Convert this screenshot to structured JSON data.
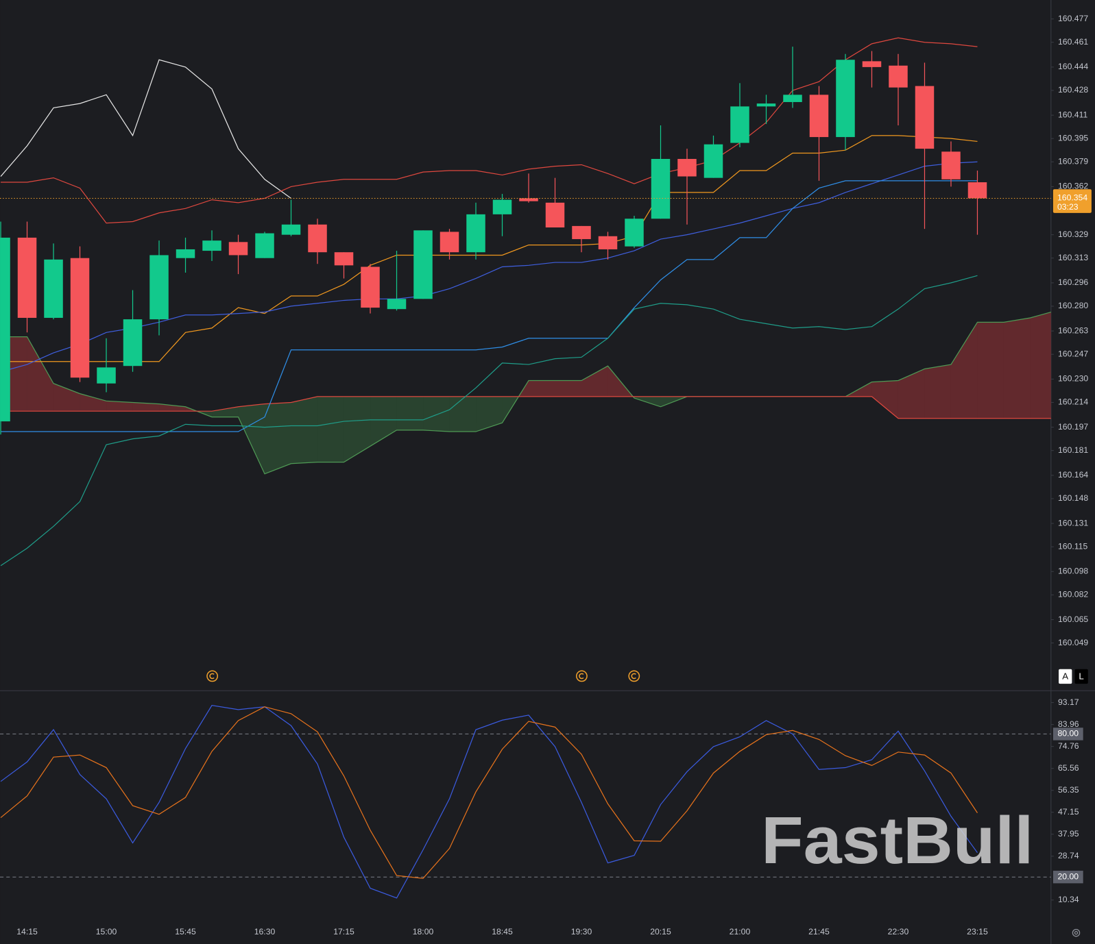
{
  "chart_data": [
    {
      "type": "candlestick",
      "categories": [
        null,
        "14:15",
        null,
        null,
        "15:00",
        null,
        null,
        "15:45",
        null,
        null,
        "16:30",
        null,
        null,
        "17:15",
        null,
        null,
        "18:00",
        null,
        null,
        "18:45",
        null,
        null,
        "19:30",
        null,
        null,
        "20:15",
        null,
        null,
        "21:00",
        null,
        null,
        "21:45",
        null,
        null,
        "22:30",
        null,
        null,
        "23:15",
        null,
        null,
        null
      ],
      "open": [
        160.201,
        160.327,
        160.272,
        160.313,
        160.227,
        160.239,
        160.271,
        160.313,
        160.318,
        160.324,
        160.313,
        160.329,
        160.336,
        160.317,
        160.307,
        160.278,
        160.285,
        160.331,
        160.317,
        160.343,
        160.354,
        160.351,
        160.335,
        160.328,
        160.321,
        160.34,
        160.381,
        160.368,
        160.392,
        160.417,
        160.42,
        160.425,
        160.396,
        160.448,
        160.445,
        160.431,
        160.386,
        160.365,
        null,
        null,
        null
      ],
      "high": [
        160.338,
        160.338,
        160.323,
        160.321,
        160.258,
        160.291,
        160.325,
        160.327,
        160.332,
        160.329,
        160.331,
        160.353,
        160.34,
        160.317,
        160.309,
        160.318,
        160.332,
        160.333,
        160.351,
        160.357,
        160.371,
        160.368,
        160.335,
        160.331,
        160.342,
        160.404,
        160.388,
        160.397,
        160.433,
        160.425,
        160.458,
        160.431,
        160.453,
        160.455,
        160.453,
        160.447,
        160.393,
        160.373,
        null,
        null,
        null
      ],
      "low": [
        160.192,
        160.262,
        160.271,
        160.228,
        160.221,
        160.235,
        160.26,
        160.303,
        160.311,
        160.302,
        160.313,
        160.328,
        160.309,
        160.299,
        160.275,
        160.277,
        160.285,
        160.312,
        160.312,
        160.328,
        160.351,
        160.334,
        160.317,
        160.312,
        160.32,
        160.34,
        160.336,
        160.368,
        160.389,
        160.405,
        160.416,
        160.366,
        160.387,
        160.43,
        160.404,
        160.333,
        160.362,
        160.329,
        null,
        null,
        null
      ],
      "close": [
        160.327,
        160.272,
        160.312,
        160.231,
        160.238,
        160.271,
        160.315,
        160.319,
        160.325,
        160.315,
        160.33,
        160.336,
        160.317,
        160.308,
        160.279,
        160.285,
        160.332,
        160.317,
        160.343,
        160.353,
        160.352,
        160.334,
        160.326,
        160.319,
        160.34,
        160.381,
        160.369,
        160.391,
        160.417,
        160.419,
        160.425,
        160.396,
        160.449,
        160.444,
        160.43,
        160.388,
        160.367,
        160.354,
        null,
        null,
        null
      ],
      "up_color": "#12c98c",
      "down_color": "#f5555a",
      "series": [
        {
          "color": "#e8e8e8",
          "values": [
            160.369,
            160.39,
            160.416,
            160.419,
            160.425,
            160.397,
            160.449,
            160.444,
            160.429,
            160.388,
            160.367,
            160.354,
            null,
            null,
            null,
            null,
            null,
            null,
            null,
            null,
            null,
            null,
            null,
            null,
            null,
            null,
            null,
            null,
            null,
            null,
            null,
            null,
            null,
            null,
            null,
            null,
            null,
            null,
            null,
            null,
            null
          ]
        },
        {
          "color": "#e0483f",
          "values": [
            160.365,
            160.365,
            160.368,
            160.361,
            160.337,
            160.338,
            160.344,
            160.347,
            160.353,
            160.351,
            160.354,
            160.362,
            160.365,
            160.367,
            160.367,
            160.367,
            160.372,
            160.373,
            160.373,
            160.37,
            160.374,
            160.376,
            160.377,
            160.371,
            160.364,
            160.371,
            160.375,
            160.38,
            160.392,
            160.406,
            160.428,
            160.434,
            160.449,
            160.46,
            160.464,
            160.461,
            160.46,
            160.458,
            null,
            null,
            null
          ]
        },
        {
          "color": "#f2991f",
          "values": [
            160.242,
            160.242,
            160.242,
            160.242,
            160.242,
            160.242,
            160.242,
            160.262,
            160.265,
            160.279,
            160.275,
            160.287,
            160.287,
            160.295,
            160.308,
            160.315,
            160.315,
            160.315,
            160.315,
            160.315,
            160.322,
            160.322,
            160.322,
            160.323,
            160.328,
            160.358,
            160.358,
            160.358,
            160.373,
            160.373,
            160.385,
            160.385,
            160.387,
            160.397,
            160.397,
            160.396,
            160.395,
            160.393,
            null,
            null,
            null
          ]
        },
        {
          "color": "#3f5fe0",
          "values": [
            160.235,
            160.24,
            160.248,
            160.254,
            160.262,
            160.265,
            160.269,
            160.274,
            160.274,
            160.275,
            160.276,
            160.28,
            160.282,
            160.284,
            160.285,
            160.285,
            160.287,
            160.292,
            160.299,
            160.307,
            160.308,
            160.31,
            160.31,
            160.313,
            160.318,
            160.326,
            160.329,
            160.333,
            160.337,
            160.342,
            160.347,
            160.351,
            160.358,
            160.364,
            160.37,
            160.376,
            160.378,
            160.379,
            null,
            null,
            null
          ]
        },
        {
          "color": "#2f8fe8",
          "values": [
            160.194,
            160.194,
            160.194,
            160.194,
            160.194,
            160.194,
            160.194,
            160.194,
            160.194,
            160.194,
            160.204,
            160.25,
            160.25,
            160.25,
            160.25,
            160.25,
            160.25,
            160.25,
            160.25,
            160.252,
            160.258,
            160.258,
            160.258,
            160.258,
            160.279,
            160.298,
            160.312,
            160.312,
            160.327,
            160.327,
            160.347,
            160.361,
            160.366,
            160.366,
            160.366,
            160.366,
            160.366,
            160.366,
            null,
            null,
            null
          ]
        },
        {
          "color": "#1f9e8a",
          "values": [
            160.102,
            160.114,
            160.129,
            160.146,
            160.185,
            160.189,
            160.191,
            160.199,
            160.198,
            160.198,
            160.197,
            160.198,
            160.198,
            160.201,
            160.202,
            160.202,
            160.202,
            160.209,
            160.224,
            160.241,
            160.24,
            160.244,
            160.245,
            160.258,
            160.278,
            160.282,
            160.281,
            160.278,
            160.271,
            160.268,
            160.265,
            160.266,
            160.264,
            160.266,
            160.278,
            160.292,
            160.296,
            160.301,
            null,
            null,
            null
          ]
        }
      ],
      "cloud": {
        "a": [
          160.259,
          160.259,
          160.227,
          160.22,
          160.215,
          160.214,
          160.213,
          160.211,
          160.204,
          160.204,
          160.165,
          160.172,
          160.173,
          160.173,
          160.184,
          160.195,
          160.195,
          160.194,
          160.194,
          160.2,
          160.229,
          160.229,
          160.229,
          160.239,
          160.217,
          160.211,
          160.218,
          160.218,
          160.218,
          160.218,
          160.218,
          160.218,
          160.218,
          160.228,
          160.229,
          160.237,
          160.24,
          160.269,
          160.269,
          160.272,
          160.277
        ],
        "b": [
          160.208,
          160.208,
          160.208,
          160.208,
          160.208,
          160.208,
          160.208,
          160.208,
          160.208,
          160.211,
          160.213,
          160.214,
          160.218,
          160.218,
          160.218,
          160.218,
          160.218,
          160.218,
          160.218,
          160.218,
          160.218,
          160.218,
          160.218,
          160.218,
          160.218,
          160.218,
          160.218,
          160.218,
          160.218,
          160.218,
          160.218,
          160.218,
          160.218,
          160.218,
          160.203,
          160.203,
          160.203,
          160.203,
          160.203,
          160.203,
          160.203
        ],
        "a_color": "#4f9a55",
        "b_color": "#e0483f",
        "a_above_color": "#6e2c2f",
        "b_above_color": "#2b4a31"
      },
      "current_price": 160.354,
      "countdown": "03:23",
      "current_price_color": "#f0a02c",
      "ylim": [
        160.033,
        160.49
      ],
      "yticks": [
        160.477,
        160.461,
        160.444,
        160.428,
        160.411,
        160.395,
        160.379,
        160.362,
        160.329,
        160.313,
        160.296,
        {
          "value": 160.28,
          "label": "160.280"
        },
        160.263,
        160.247,
        {
          "value": 160.23,
          "label": "160.230"
        },
        160.214,
        160.197,
        160.181,
        160.164,
        160.148,
        160.131,
        160.115,
        160.098,
        160.082,
        160.065,
        160.049
      ],
      "controls": [
        "A",
        "L"
      ],
      "watermark": "FastBull"
    },
    {
      "type": "line",
      "series": [
        {
          "color": "#3b5be0",
          "values": [
            60.1,
            68.3,
            81.8,
            63.0,
            52.8,
            34.3,
            51.3,
            73.9,
            92.0,
            90.2,
            91.4,
            83.5,
            67.4,
            36.7,
            15.3,
            11.2,
            31.4,
            52.8,
            81.8,
            85.8,
            87.9,
            74.7,
            51.3,
            25.9,
            29.1,
            50.4,
            64.2,
            74.7,
            78.8,
            85.6,
            80.0,
            65.1,
            65.9,
            69.2,
            81.2,
            64.5,
            45.5,
            30.2,
            null,
            null,
            null
          ]
        },
        {
          "color": "#e8731c",
          "values": [
            44.9,
            54.0,
            70.3,
            71.2,
            65.9,
            49.9,
            46.3,
            53.4,
            72.7,
            85.6,
            91.4,
            88.5,
            80.9,
            62.4,
            39.6,
            20.6,
            19.4,
            32.0,
            55.7,
            73.6,
            85.3,
            82.9,
            71.5,
            50.7,
            35.2,
            35.0,
            47.8,
            63.6,
            72.7,
            79.7,
            81.5,
            77.7,
            70.9,
            66.8,
            72.4,
            71.2,
            63.6,
            46.9,
            null,
            null,
            null
          ]
        }
      ],
      "reference_lines": [
        {
          "value": 80,
          "label": "80.00"
        },
        {
          "value": 20,
          "label": "20.00"
        }
      ],
      "ylim": [
        1.56,
        98.14
      ],
      "yticks": [
        93.17,
        83.96,
        74.76,
        65.56,
        56.35,
        47.15,
        37.95,
        28.74,
        10.34
      ]
    }
  ]
}
